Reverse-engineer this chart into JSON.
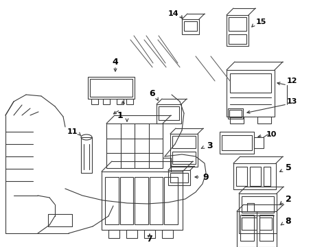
{
  "bg_color": "#ffffff",
  "lc": "#3a3a3a",
  "lw": 0.8,
  "fig_w": 4.89,
  "fig_h": 3.6,
  "dpi": 100,
  "xlim": [
    0,
    489
  ],
  "ylim": [
    0,
    360
  ]
}
